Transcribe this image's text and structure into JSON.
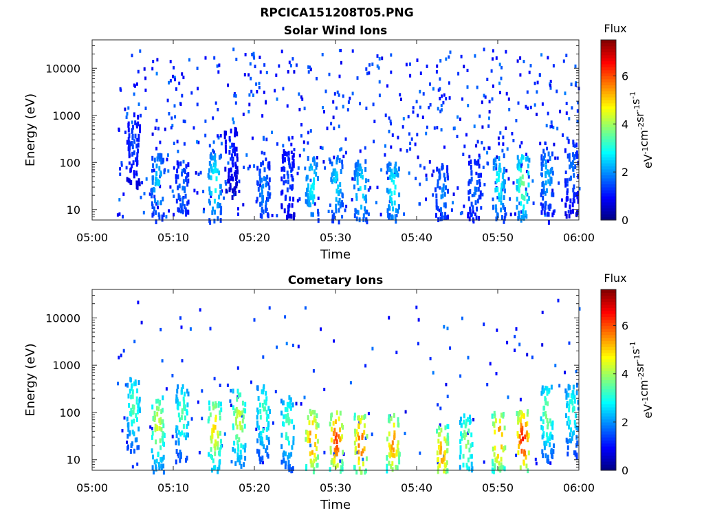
{
  "figure": {
    "title": "RPCICA151208T05.PNG"
  },
  "chart_data": [
    {
      "type": "heatmap",
      "title": "Solar Wind Ions",
      "xlabel": "Time",
      "ylabel": "Energy (eV)",
      "x_scale": "time",
      "x_range": [
        "05:00",
        "06:00"
      ],
      "x_ticks": [
        "05:00",
        "05:10",
        "05:20",
        "05:30",
        "05:40",
        "05:50",
        "06:00"
      ],
      "y_scale": "log",
      "y_range": [
        6,
        40000
      ],
      "y_ticks": [
        "10",
        "100",
        "1000",
        "10000"
      ],
      "colorbar": {
        "title": "Flux",
        "label": "eV-1cm-2sr-1s-1",
        "range": [
          0,
          7.5
        ],
        "ticks": [
          "0",
          "2",
          "4",
          "6"
        ],
        "colormap": "jet"
      },
      "bursts": [
        {
          "t": "05:05",
          "e": 300,
          "v": 1.5
        },
        {
          "t": "05:08",
          "e": 40,
          "v": 2.5
        },
        {
          "t": "05:11",
          "e": 30,
          "v": 1.8
        },
        {
          "t": "05:15",
          "e": 40,
          "v": 3.0
        },
        {
          "t": "05:17",
          "e": 200,
          "v": 1.2
        },
        {
          "t": "05:21",
          "e": 30,
          "v": 2.0
        },
        {
          "t": "05:24",
          "e": 50,
          "v": 1.5
        },
        {
          "t": "05:27",
          "e": 35,
          "v": 2.8
        },
        {
          "t": "05:30",
          "e": 40,
          "v": 2.6
        },
        {
          "t": "05:33",
          "e": 30,
          "v": 2.8
        },
        {
          "t": "05:37",
          "e": 30,
          "v": 2.9
        },
        {
          "t": "05:43",
          "e": 25,
          "v": 2.0
        },
        {
          "t": "05:47",
          "e": 30,
          "v": 1.8
        },
        {
          "t": "05:50",
          "e": 40,
          "v": 2.9
        },
        {
          "t": "05:53",
          "e": 40,
          "v": 3.7
        },
        {
          "t": "05:56",
          "e": 60,
          "v": 2.3
        },
        {
          "t": "05:59",
          "e": 80,
          "v": 1.8
        }
      ]
    },
    {
      "type": "heatmap",
      "title": "Cometary Ions",
      "xlabel": "Time",
      "ylabel": "Energy (eV)",
      "x_scale": "time",
      "x_range": [
        "05:00",
        "06:00"
      ],
      "x_ticks": [
        "05:00",
        "05:10",
        "05:20",
        "05:30",
        "05:40",
        "05:50",
        "06:00"
      ],
      "y_scale": "log",
      "y_range": [
        6,
        40000
      ],
      "y_ticks": [
        "10",
        "100",
        "1000",
        "10000"
      ],
      "colorbar": {
        "title": "Flux",
        "label": "eV-1cm-2sr-1s-1",
        "range": [
          0,
          7.5
        ],
        "ticks": [
          "0",
          "2",
          "4",
          "6"
        ],
        "colormap": "jet"
      },
      "bursts": [
        {
          "t": "05:05",
          "e": 150,
          "v": 3.5
        },
        {
          "t": "05:08",
          "e": 60,
          "v": 4.5
        },
        {
          "t": "05:11",
          "e": 100,
          "v": 3.5
        },
        {
          "t": "05:15",
          "e": 50,
          "v": 5.0
        },
        {
          "t": "05:18",
          "e": 80,
          "v": 4.5
        },
        {
          "t": "05:21",
          "e": 100,
          "v": 3.5
        },
        {
          "t": "05:24",
          "e": 60,
          "v": 3.5
        },
        {
          "t": "05:27",
          "e": 30,
          "v": 5.8
        },
        {
          "t": "05:30",
          "e": 30,
          "v": 6.2
        },
        {
          "t": "05:33",
          "e": 25,
          "v": 6.0
        },
        {
          "t": "05:37",
          "e": 25,
          "v": 5.6
        },
        {
          "t": "05:43",
          "e": 15,
          "v": 5.5
        },
        {
          "t": "05:46",
          "e": 25,
          "v": 4.0
        },
        {
          "t": "05:50",
          "e": 30,
          "v": 5.8
        },
        {
          "t": "05:53",
          "e": 30,
          "v": 6.5
        },
        {
          "t": "05:56",
          "e": 100,
          "v": 3.8
        },
        {
          "t": "05:59",
          "e": 120,
          "v": 3.2
        }
      ]
    }
  ]
}
